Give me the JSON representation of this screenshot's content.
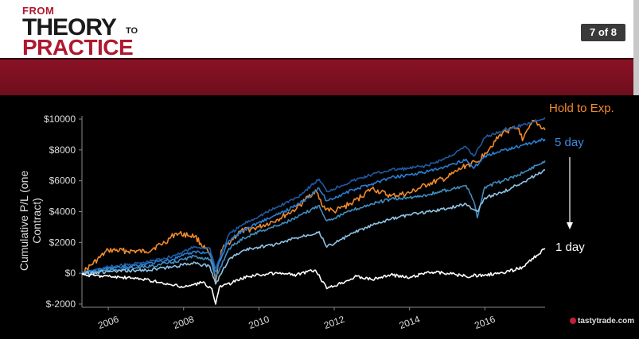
{
  "header": {
    "logo": {
      "from": "FROM",
      "theory": "THEORY",
      "to": "TO",
      "practice": "PRACTICE"
    },
    "slide_counter": "7 of 8"
  },
  "brand": "tastytrade.com",
  "colors": {
    "hold": "#f08a2c",
    "five_day": "#2a7fd4",
    "one_day": "#ffffff",
    "header_red": "#7a0f22"
  },
  "chart_data": {
    "type": "line",
    "ylabel": "Cumulative P/L (one Contract)",
    "ylim": [
      -2000,
      10000
    ],
    "yticks": [
      "$10000",
      "$8000",
      "$6000",
      "$4000",
      "$2000",
      "$0",
      "$-2000"
    ],
    "ytick_values": [
      10000,
      8000,
      6000,
      4000,
      2000,
      0,
      -2000
    ],
    "xlim": [
      2005.3,
      2017.6
    ],
    "xticks": [
      "2006",
      "2008",
      "2010",
      "2012",
      "2014",
      "2016"
    ],
    "xtick_values": [
      2006,
      2008,
      2010,
      2012,
      2014,
      2016
    ],
    "grid": false,
    "annotations": {
      "hold": "Hold to Exp.",
      "five_day": "5 day",
      "one_day": "1 day"
    },
    "series": [
      {
        "name": "Hold to Exp.",
        "color": "#f08a2c",
        "x": [
          2005.3,
          2006,
          2007,
          2007.5,
          2007.8,
          2008.3,
          2008.7,
          2008.85,
          2009,
          2009.5,
          2010,
          2010.5,
          2011,
          2011.5,
          2011.7,
          2012,
          2012.5,
          2013,
          2013.5,
          2014,
          2014.5,
          2015,
          2015.5,
          2015.8,
          2016,
          2016.5,
          2016.9,
          2017,
          2017.3,
          2017.6
        ],
        "y": [
          0,
          1500,
          1400,
          2000,
          2600,
          2400,
          1200,
          -500,
          1500,
          2700,
          3000,
          3500,
          4200,
          5400,
          4300,
          4000,
          4600,
          5500,
          5000,
          5200,
          5800,
          6200,
          7000,
          7200,
          7800,
          9200,
          9400,
          8600,
          9900,
          9300
        ]
      },
      {
        "name": "",
        "color": "#1f5ba3",
        "x": [
          2005.3,
          2006,
          2007,
          2007.7,
          2008.3,
          2008.7,
          2008.85,
          2009.2,
          2009.6,
          2010,
          2010.5,
          2011,
          2011.6,
          2011.8,
          2012.2,
          2012.5,
          2013,
          2013.5,
          2014,
          2014.5,
          2015,
          2015.5,
          2015.7,
          2016,
          2016.5,
          2017,
          2017.6
        ],
        "y": [
          0,
          400,
          700,
          1100,
          1700,
          1600,
          300,
          2500,
          3200,
          3700,
          4300,
          4900,
          6100,
          5300,
          5700,
          6000,
          6400,
          6700,
          6800,
          7000,
          7500,
          8200,
          7600,
          8800,
          9300,
          9600,
          10100
        ]
      },
      {
        "name": "",
        "color": "#2a7fd4",
        "x": [
          2005.3,
          2006,
          2007,
          2007.7,
          2008.3,
          2008.7,
          2008.85,
          2009.2,
          2009.6,
          2010,
          2010.5,
          2011,
          2011.6,
          2011.8,
          2012.2,
          2012.5,
          2013,
          2013.5,
          2014,
          2014.5,
          2015,
          2015.5,
          2015.7,
          2016,
          2016.5,
          2017,
          2017.6
        ],
        "y": [
          0,
          300,
          600,
          900,
          1400,
          1300,
          100,
          2100,
          2800,
          3300,
          3800,
          4400,
          5500,
          4700,
          5100,
          5400,
          5800,
          6200,
          6400,
          6600,
          6900,
          7400,
          6800,
          7600,
          8000,
          8300,
          8700
        ]
      },
      {
        "name": "",
        "color": "#3f8ec2",
        "x": [
          2005.3,
          2006,
          2007,
          2007.7,
          2008.3,
          2008.7,
          2008.85,
          2009.2,
          2009.6,
          2010,
          2010.5,
          2011,
          2011.6,
          2011.8,
          2012.2,
          2012.5,
          2013,
          2013.5,
          2014,
          2014.5,
          2015,
          2015.5,
          2015.7,
          2015.8,
          2016,
          2016.5,
          2017,
          2017.6
        ],
        "y": [
          0,
          200,
          400,
          700,
          1100,
          900,
          -300,
          1600,
          2300,
          2700,
          3100,
          3600,
          4400,
          3400,
          3800,
          4100,
          4500,
          4800,
          4900,
          5100,
          5400,
          5700,
          4700,
          3600,
          5600,
          6000,
          6500,
          7300
        ]
      },
      {
        "name": "",
        "color": "#8fc3e6",
        "x": [
          2005.3,
          2006,
          2007,
          2007.7,
          2008.3,
          2008.7,
          2008.85,
          2009.2,
          2009.6,
          2010,
          2010.5,
          2011,
          2011.6,
          2011.8,
          2012.2,
          2012.5,
          2013,
          2013.5,
          2014,
          2014.5,
          2015,
          2015.5,
          2015.8,
          2016,
          2016.5,
          2017,
          2017.6
        ],
        "y": [
          0,
          100,
          200,
          400,
          700,
          400,
          -700,
          900,
          1500,
          1700,
          1900,
          2300,
          2700,
          1700,
          2200,
          2600,
          3100,
          3500,
          3800,
          4000,
          4200,
          4500,
          4000,
          4900,
          5300,
          5900,
          6700
        ]
      },
      {
        "name": "",
        "color": "#ffffff",
        "x": [
          2005.3,
          2006,
          2007,
          2007.5,
          2008,
          2008.5,
          2008.75,
          2008.85,
          2008.95,
          2009.3,
          2009.7,
          2010,
          2010.5,
          2011,
          2011.5,
          2011.8,
          2012.2,
          2012.6,
          2013,
          2013.5,
          2014,
          2014.5,
          2015,
          2015.5,
          2016,
          2016.5,
          2017,
          2017.6
        ],
        "y": [
          -100,
          -200,
          -400,
          -700,
          -900,
          -600,
          -1000,
          -2000,
          -900,
          -600,
          -200,
          -100,
          0,
          -100,
          200,
          -1000,
          -600,
          -200,
          -400,
          -100,
          -300,
          100,
          0,
          -200,
          -100,
          0,
          400,
          1600
        ]
      }
    ]
  }
}
